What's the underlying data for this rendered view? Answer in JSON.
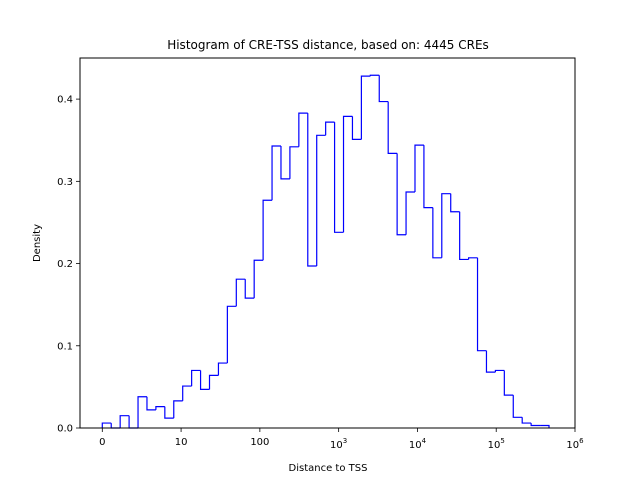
{
  "chart_data": {
    "type": "histogram-step",
    "title": "Histogram of CRE-TSS distance, based on: 4445 CREs",
    "xlabel": "Distance to TSS",
    "ylabel": "Density",
    "x_scale": "log10(distance+1) axis units",
    "xlim": [
      -0.283,
      6.0
    ],
    "ylim": [
      0,
      0.45
    ],
    "grid": false,
    "line_color": "#0000ff",
    "bin_start": 0,
    "bin_end": 5.67,
    "densities": [
      0.006,
      0.0,
      0.015,
      0.0,
      0.038,
      0.022,
      0.026,
      0.012,
      0.033,
      0.051,
      0.07,
      0.047,
      0.064,
      0.079,
      0.148,
      0.181,
      0.158,
      0.204,
      0.277,
      0.343,
      0.303,
      0.342,
      0.383,
      0.197,
      0.356,
      0.372,
      0.238,
      0.379,
      0.351,
      0.428,
      0.429,
      0.397,
      0.334,
      0.235,
      0.287,
      0.344,
      0.268,
      0.207,
      0.285,
      0.263,
      0.205,
      0.207,
      0.094,
      0.068,
      0.07,
      0.04,
      0.013,
      0.006,
      0.003,
      0.003
    ],
    "xticks": [
      {
        "value": 0,
        "base": "0",
        "exp": ""
      },
      {
        "value": 1,
        "base": "10",
        "exp": ""
      },
      {
        "value": 2,
        "base": "100",
        "exp": ""
      },
      {
        "value": 3,
        "base": "10",
        "exp": "3"
      },
      {
        "value": 4,
        "base": "10",
        "exp": "4"
      },
      {
        "value": 5,
        "base": "10",
        "exp": "5"
      },
      {
        "value": 6,
        "base": "10",
        "exp": "6"
      }
    ],
    "yticks": [
      {
        "value": 0.0,
        "label": "0.0"
      },
      {
        "value": 0.1,
        "label": "0.1"
      },
      {
        "value": 0.2,
        "label": "0.2"
      },
      {
        "value": 0.3,
        "label": "0.3"
      },
      {
        "value": 0.4,
        "label": "0.4"
      }
    ]
  }
}
